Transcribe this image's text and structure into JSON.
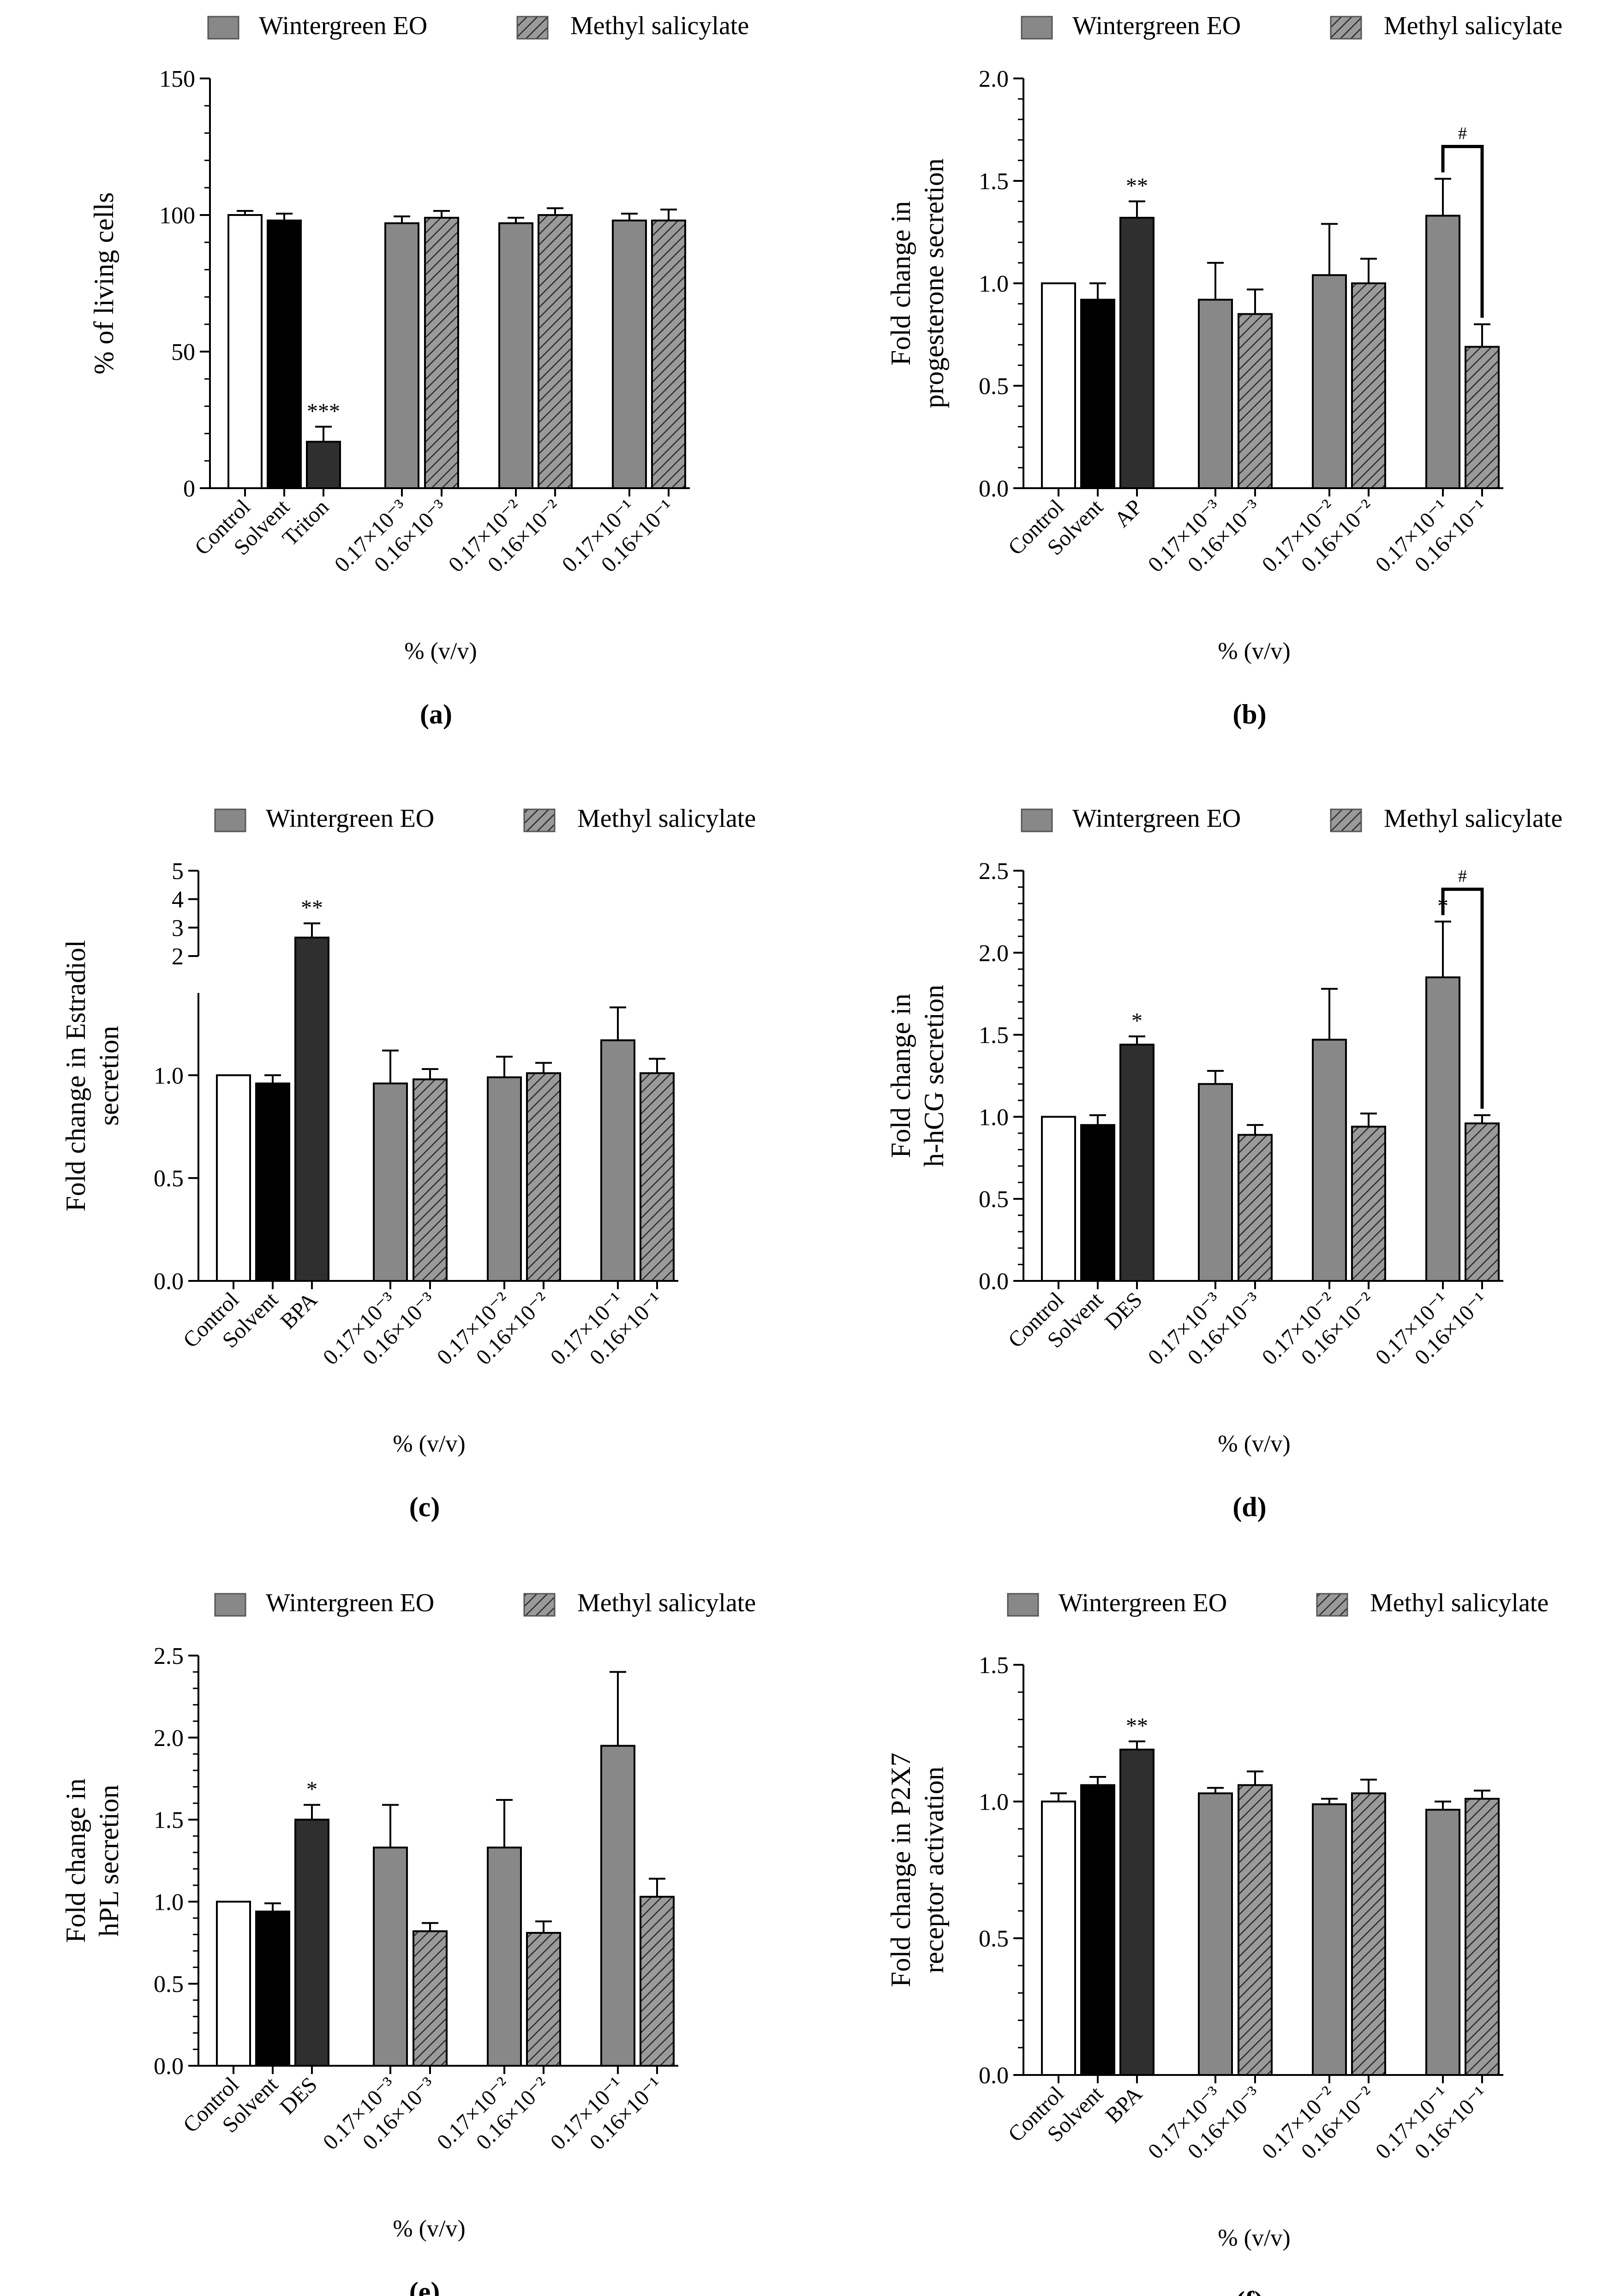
{
  "figure": {
    "legend": {
      "wintergreen": "Wintergreen EO",
      "methyl": "Methyl salicylate"
    },
    "colors": {
      "white": "#ffffff",
      "black": "#000000",
      "dark": "#2f2f2f",
      "grey": "#888888",
      "hatch_bg": "#9a9a9a",
      "axis": "#000000"
    }
  },
  "chart_data": [
    {
      "panel": "(a)",
      "type": "bar",
      "ylabel": [
        "% of living cells"
      ],
      "xlabel": "% (v/v)",
      "ylim": [
        0,
        150
      ],
      "ticks": [
        "0",
        "50",
        "100",
        "150"
      ],
      "categories": [
        "Control",
        "Solvent",
        "Triton",
        "0.17×10⁻³",
        "0.16×10⁻³",
        "0.17×10⁻²",
        "0.16×10⁻²",
        "0.17×10⁻¹",
        "0.16×10⁻¹"
      ],
      "values": [
        100,
        98,
        17,
        97,
        99,
        97,
        100,
        98,
        98
      ],
      "errors": [
        1.5,
        2.5,
        5.5,
        2.5,
        2.5,
        2,
        2.5,
        2.5,
        4
      ],
      "styles": [
        "white",
        "black",
        "dark",
        "grey",
        "hatch",
        "grey",
        "hatch",
        "grey",
        "hatch"
      ],
      "annotations": [
        {
          "bar": 2,
          "text": "***"
        }
      ],
      "brackets": []
    },
    {
      "panel": "(b)",
      "type": "bar",
      "ylabel": [
        "Fold change in",
        "progesterone secretion"
      ],
      "xlabel": "% (v/v)",
      "ylim": [
        0,
        2.0
      ],
      "ticks": [
        "0.0",
        "0.5",
        "1.0",
        "1.5",
        "2.0"
      ],
      "categories": [
        "Control",
        "Solvent",
        "AP",
        "0.17×10⁻³",
        "0.16×10⁻³",
        "0.17×10⁻²",
        "0.16×10⁻²",
        "0.17×10⁻¹",
        "0.16×10⁻¹"
      ],
      "values": [
        1.0,
        0.92,
        1.32,
        0.92,
        0.85,
        1.04,
        1.0,
        1.33,
        0.69
      ],
      "errors": [
        0,
        0.08,
        0.08,
        0.18,
        0.12,
        0.25,
        0.12,
        0.18,
        0.11
      ],
      "styles": [
        "white",
        "black",
        "dark",
        "grey",
        "hatch",
        "grey",
        "hatch",
        "grey",
        "hatch"
      ],
      "annotations": [
        {
          "bar": 2,
          "text": "**"
        }
      ],
      "brackets": [
        {
          "from": 7,
          "to": 8,
          "text": "#"
        }
      ]
    },
    {
      "panel": "(c)",
      "type": "bar",
      "ylabel": [
        "Fold change in Estradiol",
        "secretion"
      ],
      "xlabel": "% (v/v)",
      "ylim": [
        0,
        5
      ],
      "broken_axis": true,
      "ticks": [
        "0.0",
        "0.5",
        "1.0",
        "2",
        "3",
        "4",
        "5"
      ],
      "categories": [
        "Control",
        "Solvent",
        "BPA",
        "0.17×10⁻³",
        "0.16×10⁻³",
        "0.17×10⁻²",
        "0.16×10⁻²",
        "0.17×10⁻¹",
        "0.16×10⁻¹"
      ],
      "values": [
        1.0,
        0.96,
        2.65,
        0.96,
        0.98,
        0.99,
        1.01,
        1.17,
        1.01
      ],
      "errors": [
        0,
        0.04,
        0.5,
        0.16,
        0.05,
        0.1,
        0.05,
        0.16,
        0.07
      ],
      "styles": [
        "white",
        "black",
        "dark",
        "grey",
        "hatch",
        "grey",
        "hatch",
        "grey",
        "hatch"
      ],
      "annotations": [
        {
          "bar": 2,
          "text": "**"
        }
      ],
      "brackets": []
    },
    {
      "panel": "(d)",
      "type": "bar",
      "ylabel": [
        "Fold change in",
        "h-hCG secretion"
      ],
      "xlabel": "% (v/v)",
      "ylim": [
        0,
        2.5
      ],
      "ticks": [
        "0.0",
        "0.5",
        "1.0",
        "1.5",
        "2.0",
        "2.5"
      ],
      "categories": [
        "Control",
        "Solvent",
        "DES",
        "0.17×10⁻³",
        "0.16×10⁻³",
        "0.17×10⁻²",
        "0.16×10⁻²",
        "0.17×10⁻¹",
        "0.16×10⁻¹"
      ],
      "values": [
        1.0,
        0.95,
        1.44,
        1.2,
        0.89,
        1.47,
        0.94,
        1.85,
        0.96
      ],
      "errors": [
        0,
        0.06,
        0.05,
        0.08,
        0.06,
        0.31,
        0.08,
        0.34,
        0.05
      ],
      "styles": [
        "white",
        "black",
        "dark",
        "grey",
        "hatch",
        "grey",
        "hatch",
        "grey",
        "hatch"
      ],
      "annotations": [
        {
          "bar": 2,
          "text": "*"
        },
        {
          "bar": 7,
          "text": "*"
        }
      ],
      "brackets": [
        {
          "from": 7,
          "to": 8,
          "text": "#"
        }
      ]
    },
    {
      "panel": "(e)",
      "type": "bar",
      "ylabel": [
        "Fold change in",
        "hPL secretion"
      ],
      "xlabel": "% (v/v)",
      "ylim": [
        0,
        2.5
      ],
      "ticks": [
        "0.0",
        "0.5",
        "1.0",
        "1.5",
        "2.0",
        "2.5"
      ],
      "categories": [
        "Control",
        "Solvent",
        "DES",
        "0.17×10⁻³",
        "0.16×10⁻³",
        "0.17×10⁻²",
        "0.16×10⁻²",
        "0.17×10⁻¹",
        "0.16×10⁻¹"
      ],
      "values": [
        1.0,
        0.94,
        1.5,
        1.33,
        0.82,
        1.33,
        0.81,
        1.95,
        1.03
      ],
      "errors": [
        0,
        0.05,
        0.09,
        0.26,
        0.05,
        0.29,
        0.07,
        0.45,
        0.11
      ],
      "styles": [
        "white",
        "black",
        "dark",
        "grey",
        "hatch",
        "grey",
        "hatch",
        "grey",
        "hatch"
      ],
      "annotations": [
        {
          "bar": 2,
          "text": "*"
        }
      ],
      "brackets": []
    },
    {
      "panel": "(f)",
      "type": "bar",
      "ylabel": [
        "Fold change in P2X7",
        "receptor activation"
      ],
      "xlabel": "% (v/v)",
      "ylim": [
        0,
        1.5
      ],
      "ticks": [
        "0.0",
        "0.5",
        "1.0",
        "1.5"
      ],
      "categories": [
        "Control",
        "Solvent",
        "BPA",
        "0.17×10⁻³",
        "0.16×10⁻³",
        "0.17×10⁻²",
        "0.16×10⁻²",
        "0.17×10⁻¹",
        "0.16×10⁻¹"
      ],
      "values": [
        1.0,
        1.06,
        1.19,
        1.03,
        1.06,
        0.99,
        1.03,
        0.97,
        1.01
      ],
      "errors": [
        0.03,
        0.03,
        0.03,
        0.02,
        0.05,
        0.02,
        0.05,
        0.03,
        0.03
      ],
      "styles": [
        "white",
        "black",
        "dark",
        "grey",
        "hatch",
        "grey",
        "hatch",
        "grey",
        "hatch"
      ],
      "annotations": [
        {
          "bar": 2,
          "text": "**"
        }
      ],
      "brackets": []
    }
  ]
}
